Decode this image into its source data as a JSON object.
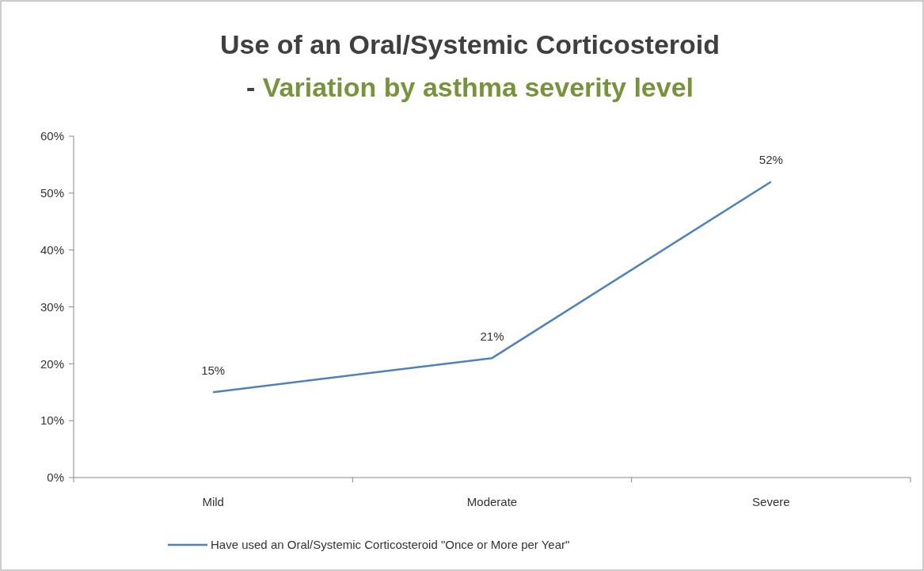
{
  "chart_data": {
    "type": "line",
    "title": "Use of an Oral/Systemic Corticosteroid",
    "subtitle": "- Variation by asthma severity level",
    "categories": [
      "Mild",
      "Moderate",
      "Severe"
    ],
    "series": [
      {
        "name": "Have used an Oral/Systemic Corticosteroid \"Once or More per Year\"",
        "color": "#4f81bd",
        "values": [
          15,
          21,
          52
        ],
        "value_labels": [
          "15%",
          "21%",
          "52%"
        ]
      }
    ],
    "ylim": [
      0,
      60
    ],
    "yticks": [
      {
        "value": 0,
        "label": "0%"
      },
      {
        "value": 10,
        "label": "10%"
      },
      {
        "value": 20,
        "label": "20%"
      },
      {
        "value": 30,
        "label": "30%"
      },
      {
        "value": 40,
        "label": "40%"
      },
      {
        "value": 50,
        "label": "50%"
      },
      {
        "value": 60,
        "label": "60%"
      }
    ],
    "legend": "bottom",
    "marker": "none",
    "line_style": "solid"
  }
}
